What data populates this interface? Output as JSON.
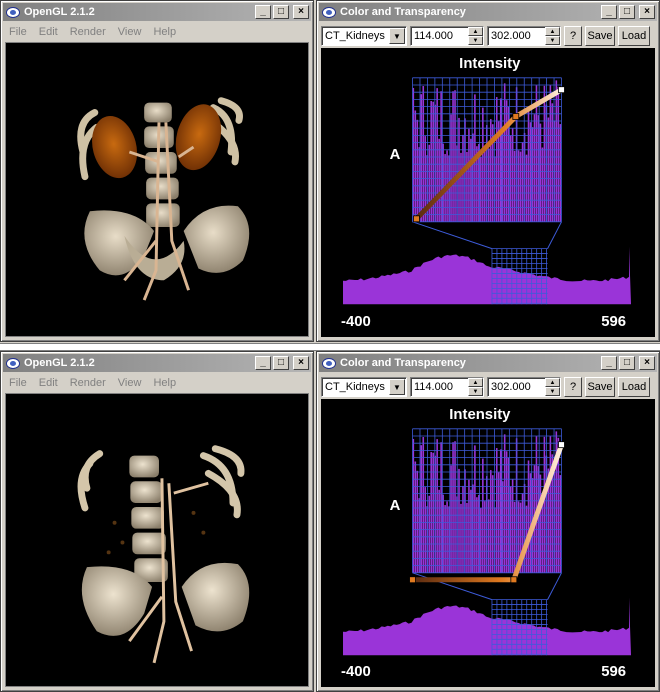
{
  "opengl_window": {
    "title": "OpenGL 2.1.2",
    "menu": [
      "File",
      "Edit",
      "Render",
      "View",
      "Help"
    ]
  },
  "tf_window": {
    "title": "Color and Transparency",
    "preset": "CT_Kidneys",
    "range_low": "114.000",
    "range_high": "302.000",
    "help_label": "?",
    "save_label": "Save",
    "load_label": "Load",
    "intensity_label": "Intensity",
    "alpha_label": "A",
    "min_label": "-400",
    "max_label": "596"
  },
  "window_buttons": {
    "minimize": "_",
    "maximize": "□",
    "close": "×"
  },
  "colors": {
    "histogram": "#9a34d8",
    "grid": "#3d5bd9",
    "tf_dark": "#5a2a10",
    "tf_orange": "#e07a20",
    "tf_light": "#fff0e0"
  },
  "icons": [
    "opengl-app-icon",
    "minimize-icon",
    "maximize-icon",
    "close-icon",
    "dropdown-arrow-icon",
    "spin-up-icon",
    "spin-down-icon"
  ]
}
